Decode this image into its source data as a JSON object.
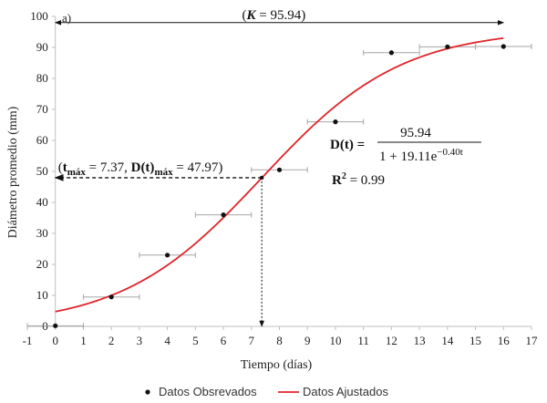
{
  "chart_data": {
    "type": "scatter",
    "panel_label": "a)",
    "xlabel": "Tiempo (días)",
    "ylabel": "Diámetro promedio (mm)",
    "xlim": [
      -1,
      17
    ],
    "ylim": [
      0,
      100
    ],
    "x_ticks": [
      -1,
      0,
      1,
      2,
      3,
      4,
      5,
      6,
      7,
      8,
      9,
      10,
      11,
      12,
      13,
      14,
      15,
      16,
      17
    ],
    "y_ticks": [
      0,
      10,
      20,
      30,
      40,
      50,
      60,
      70,
      80,
      90,
      100
    ],
    "grid": false,
    "legend_position": "bottom",
    "series": [
      {
        "name": "Datos Obsrevados",
        "kind": "points",
        "color": "#111111",
        "points": [
          {
            "x": 0,
            "y": 0.2,
            "xerr": 1
          },
          {
            "x": 2,
            "y": 9.5,
            "xerr": 1
          },
          {
            "x": 4,
            "y": 23,
            "xerr": 1
          },
          {
            "x": 6,
            "y": 36,
            "xerr": 1
          },
          {
            "x": 8,
            "y": 50.5,
            "xerr": 1
          },
          {
            "x": 10,
            "y": 66,
            "xerr": 1
          },
          {
            "x": 12,
            "y": 88.3,
            "xerr": 1
          },
          {
            "x": 14,
            "y": 90.2,
            "xerr": 1
          },
          {
            "x": 16,
            "y": 90.3,
            "xerr": 1
          }
        ]
      },
      {
        "name": "Datos Ajustados",
        "kind": "logistic-curve",
        "color": "#e0242a",
        "x_range": [
          0,
          16
        ],
        "params": {
          "K": 95.94,
          "a": 19.11,
          "r": 0.4
        }
      }
    ],
    "annotations": {
      "k_prefix": "(",
      "k_symbol": "K",
      "k_value": " = 95.94)",
      "k_line_y": 95.94,
      "tmax_open": "(",
      "tmax_t": "t",
      "tmax_sub": "máx",
      "tmax_value": " = 7.37, ",
      "tmax_D": "D(t)",
      "tmax_sub2": "máx",
      "tmax_value2": " = 47.97)",
      "tmax_x": 7.37,
      "tmax_y": 47.97,
      "eq_lhs": "D(t) =",
      "eq_numerator": "95.94",
      "eq_denominator": "1 + 19.11e",
      "eq_exponent": "−0.40t",
      "r2_label": "R",
      "r2_sup": "2",
      "r2_value": " = 0.99"
    }
  }
}
